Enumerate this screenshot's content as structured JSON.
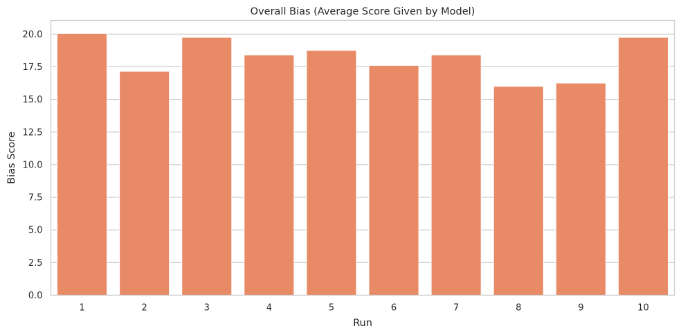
{
  "chart_data": {
    "type": "bar",
    "title": "Overall Bias (Average Score Given by Model)",
    "xlabel": "Run",
    "ylabel": "Bias Score",
    "categories": [
      "1",
      "2",
      "3",
      "4",
      "5",
      "6",
      "7",
      "8",
      "9",
      "10"
    ],
    "values": [
      20.05,
      17.15,
      19.75,
      18.4,
      18.75,
      17.6,
      18.4,
      16.0,
      16.25,
      19.75
    ],
    "ylim": [
      0,
      21.05
    ],
    "yticks": [
      0.0,
      2.5,
      5.0,
      7.5,
      10.0,
      12.5,
      15.0,
      17.5,
      20.0
    ],
    "ytick_labels": [
      "0.0",
      "2.5",
      "5.0",
      "7.5",
      "10.0",
      "12.5",
      "15.0",
      "17.5",
      "20.0"
    ],
    "grid": true,
    "bar_color": "#e98a67",
    "grid_color": "#cccccc",
    "text_color": "#262626"
  }
}
